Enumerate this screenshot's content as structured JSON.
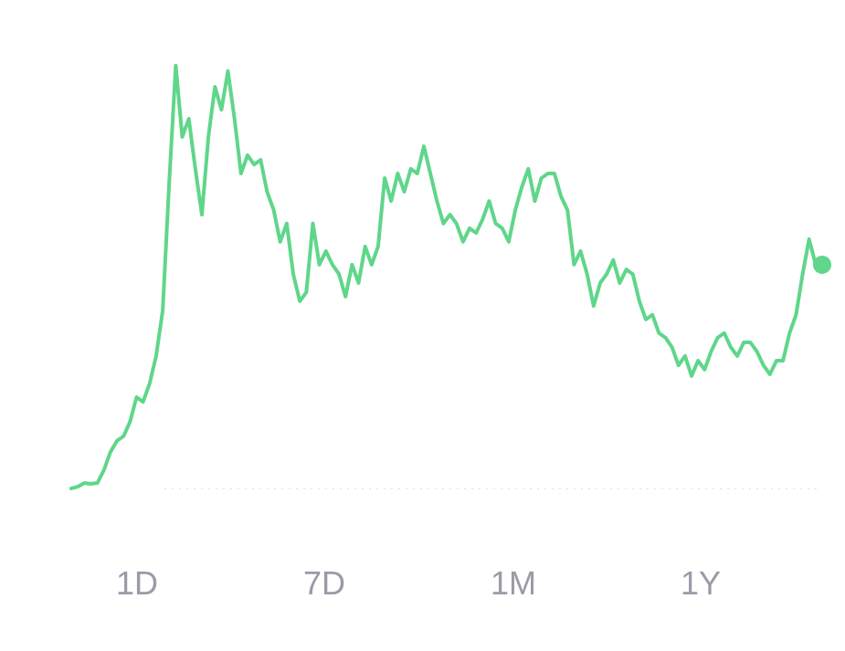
{
  "chart_data": {
    "type": "line",
    "color": "#5fd68a",
    "ylim": [
      0,
      100
    ],
    "values": [
      0,
      0.4,
      1.3,
      1.1,
      1.3,
      4.3,
      8.6,
      11.2,
      12.3,
      15.7,
      21.5,
      20.4,
      24.7,
      31.2,
      41.9,
      72,
      99.6,
      82.8,
      87.1,
      75.3,
      64.5,
      82.8,
      94.6,
      89.2,
      98.3,
      87.1,
      74.2,
      78.5,
      76.3,
      77.4,
      69.9,
      65.6,
      58.1,
      62.4,
      50.5,
      44.1,
      46.2,
      62.4,
      52.7,
      55.9,
      52.7,
      50.5,
      45.2,
      52.7,
      48.4,
      57,
      52.7,
      57,
      73.1,
      67.7,
      74.2,
      69.9,
      75.3,
      74.2,
      80.6,
      74.2,
      67.7,
      62.4,
      64.5,
      62.4,
      58.1,
      61.3,
      60.2,
      63.4,
      67.7,
      62.4,
      61.3,
      58.1,
      65.6,
      71,
      75.3,
      67.7,
      73.1,
      74.2,
      74.2,
      68.8,
      65.6,
      52.7,
      55.9,
      50.5,
      43,
      48.4,
      50.5,
      53.8,
      48.4,
      51.6,
      50.5,
      44.1,
      39.8,
      40.9,
      36.6,
      35.5,
      33.3,
      29,
      31.2,
      26.5,
      30.1,
      28,
      32.3,
      35.5,
      36.6,
      33.3,
      31.2,
      34.4,
      34.4,
      32.3,
      29,
      26.9,
      30.1,
      30.1,
      36.6,
      40.9,
      50.5,
      58.7,
      52.7,
      52.7
    ]
  },
  "timeframes": [
    "1D",
    "7D",
    "1M",
    "1Y"
  ]
}
